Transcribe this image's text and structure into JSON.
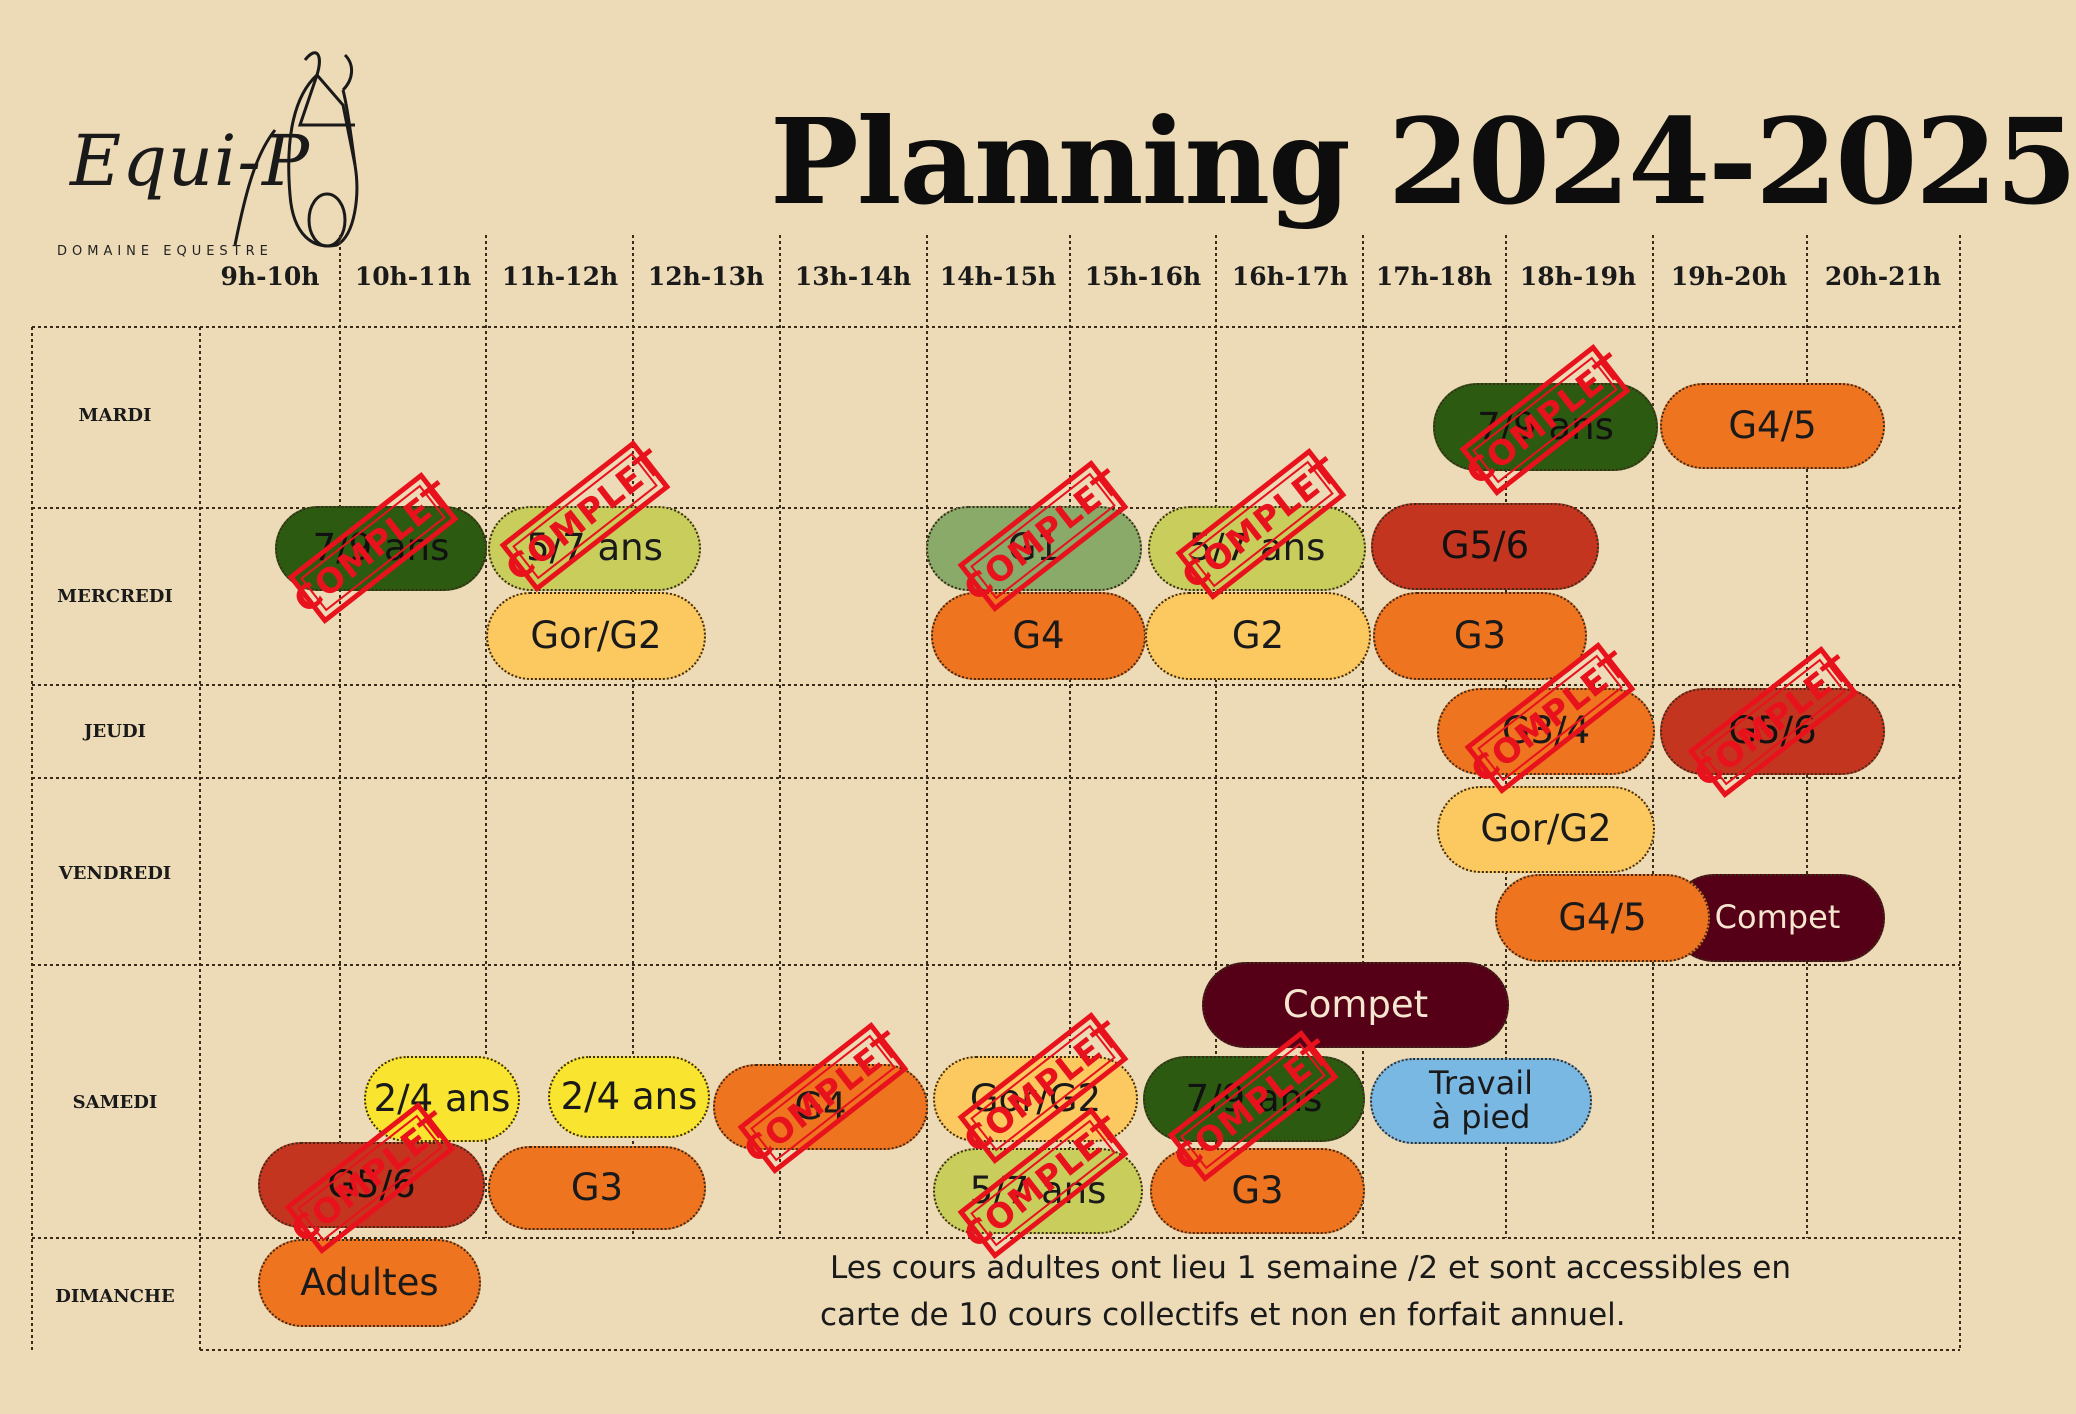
{
  "header": {
    "logo_name": "Equi-P",
    "logo_sub": "DOMAINE EQUESTRE",
    "title": "Planning 2024-2025"
  },
  "colors": {
    "background": "#eddbb7",
    "dark_green": "#2c5a10",
    "light_green": "#c9cd5c",
    "sage_green": "#8aaa6a",
    "orange": "#ee7420",
    "light_orange": "#fcc960",
    "red": "#c43520",
    "maroon": "#560017",
    "yellow": "#f9e42f",
    "blue": "#7ab8e4",
    "stamp_red": "#e8121d"
  },
  "hours": [
    "9h-10h",
    "10h-11h",
    "11h-12h",
    "12h-13h",
    "13h-14h",
    "14h-15h",
    "15h-16h",
    "16h-17h",
    "17h-18h",
    "18h-19h",
    "19h-20h",
    "20h-21h"
  ],
  "days": [
    "MARDI",
    "MERCREDI",
    "JEUDI",
    "VENDREDI",
    "SAMEDI",
    "DIMANCHE"
  ],
  "stamp_label": "COMPLET",
  "courses": {
    "mardi_1": {
      "label": "7/9 ans",
      "color": "dark_green",
      "full": true
    },
    "mardi_2": {
      "label": "G4/5",
      "color": "orange",
      "full": false
    },
    "mercredi_1": {
      "label": "7/9 ans",
      "color": "dark_green",
      "full": true
    },
    "mercredi_2": {
      "label": "5/7 ans",
      "color": "light_green",
      "full": true
    },
    "mercredi_3": {
      "label": "G1",
      "color": "sage_green",
      "full": true
    },
    "mercredi_4": {
      "label": "5/7 ans",
      "color": "light_green",
      "full": true
    },
    "mercredi_5": {
      "label": "G5/6",
      "color": "red",
      "full": false
    },
    "mercredi_6": {
      "label": "Gor/G2",
      "color": "light_orange",
      "full": false
    },
    "mercredi_7": {
      "label": "G4",
      "color": "orange",
      "full": false
    },
    "mercredi_8": {
      "label": "G2",
      "color": "light_orange",
      "full": false
    },
    "mercredi_9": {
      "label": "G3",
      "color": "orange",
      "full": false
    },
    "jeudi_1": {
      "label": "G3/4",
      "color": "orange",
      "full": true
    },
    "jeudi_2": {
      "label": "G5/6",
      "color": "red",
      "full": true
    },
    "vendredi_1": {
      "label": "Gor/G2",
      "color": "light_orange",
      "full": false
    },
    "vendredi_2": {
      "label": "G4/5",
      "color": "orange",
      "full": false
    },
    "vendredi_3": {
      "label": "Compet",
      "color": "maroon",
      "full": false
    },
    "samedi_1": {
      "label": "Compet",
      "color": "maroon",
      "full": false
    },
    "samedi_2": {
      "label": "2/4 ans",
      "color": "yellow",
      "full": false
    },
    "samedi_3": {
      "label": "2/4 ans",
      "color": "yellow",
      "full": false
    },
    "samedi_4": {
      "label": "G4",
      "color": "orange",
      "full": true
    },
    "samedi_5": {
      "label": "Gor/G2",
      "color": "light_orange",
      "full": true
    },
    "samedi_6": {
      "label": "7/9 ans",
      "color": "dark_green",
      "full": true
    },
    "samedi_7": {
      "label": "Travail\nà pied",
      "color": "blue",
      "full": false
    },
    "samedi_8": {
      "label": "G5/6",
      "color": "red",
      "full": true
    },
    "samedi_9": {
      "label": "G3",
      "color": "orange",
      "full": false
    },
    "samedi_10": {
      "label": "5/7 ans",
      "color": "light_green",
      "full": true
    },
    "samedi_11": {
      "label": "G3",
      "color": "orange",
      "full": false
    },
    "dimanche_1": {
      "label": "Adultes",
      "color": "orange",
      "full": false
    }
  },
  "note": {
    "line1": "Les cours adultes ont lieu 1 semaine /2 et sont accessibles en",
    "line2": "carte de 10 cours collectifs et non en forfait annuel."
  }
}
